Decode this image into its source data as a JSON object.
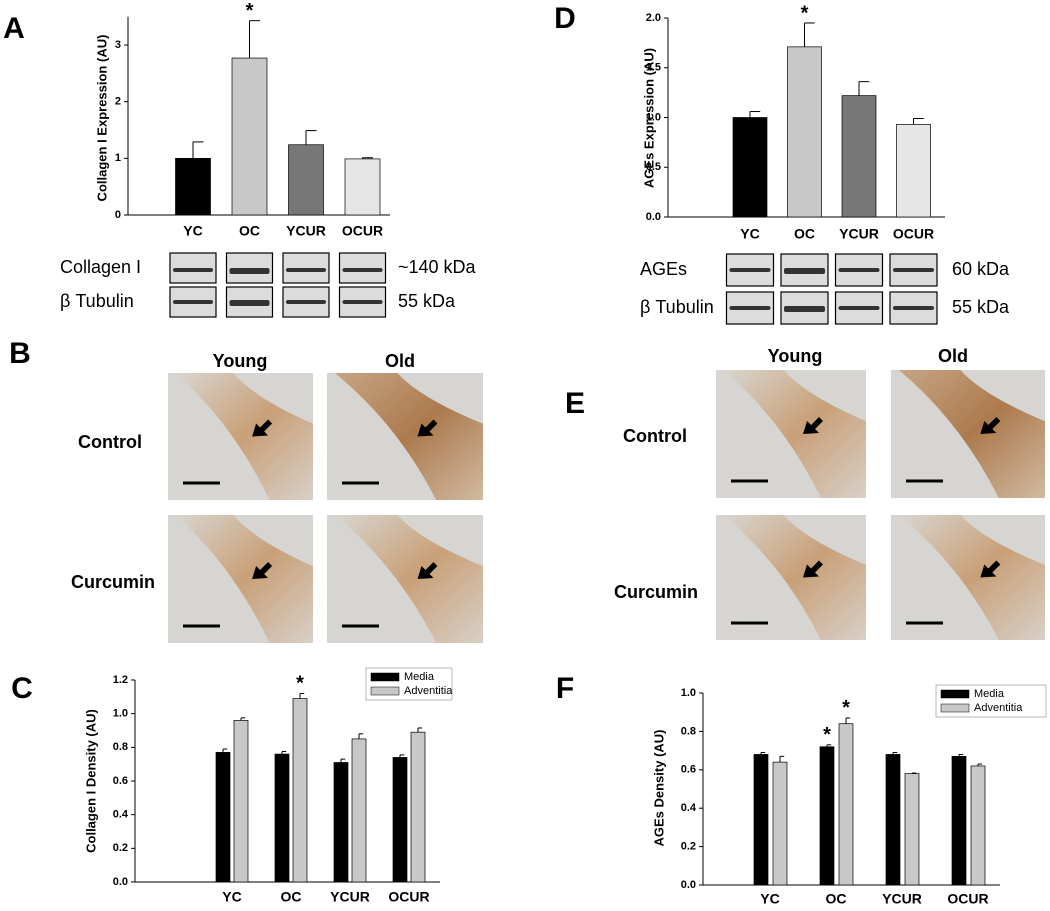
{
  "chart_data": [
    {
      "type": "bar",
      "panel": "A",
      "ylabel": "Collagen I Expression (AU)",
      "categories": [
        "YC",
        "OC",
        "YCUR",
        "OCUR"
      ],
      "values": [
        1.0,
        2.77,
        1.24,
        0.99
      ],
      "errors": [
        0.29,
        0.66,
        0.25,
        0.02
      ],
      "colors": [
        "#000000",
        "#c8c8c8",
        "#777777",
        "#e6e6e6"
      ],
      "stars": [
        null,
        "*",
        null,
        null
      ],
      "ylim": [
        0,
        3.5
      ],
      "yticks": [
        0,
        1,
        2,
        3
      ],
      "blots": [
        {
          "label": "Collagen I",
          "size": "~140 kDa"
        },
        {
          "label": "β Tubulin",
          "size": "55 kDa"
        }
      ]
    },
    {
      "type": "bar",
      "panel": "C",
      "ylabel": "Collagen I Density (AU)",
      "categories": [
        "YC",
        "OC",
        "YCUR",
        "OCUR"
      ],
      "series": [
        {
          "name": "Media",
          "color": "#000000",
          "values": [
            0.77,
            0.76,
            0.71,
            0.74
          ],
          "errors": [
            0.02,
            0.015,
            0.02,
            0.015
          ],
          "stars": [
            null,
            null,
            null,
            null
          ]
        },
        {
          "name": "Adventitia",
          "color": "#c8c8c8",
          "values": [
            0.96,
            1.09,
            0.85,
            0.89
          ],
          "errors": [
            0.015,
            0.03,
            0.03,
            0.025
          ],
          "stars": [
            null,
            "*",
            null,
            null
          ]
        }
      ],
      "ylim": [
        0,
        1.2
      ],
      "yticks": [
        {
          "value": 0,
          "label": "0.0"
        },
        0.2,
        0.4,
        0.6,
        0.8,
        {
          "value": 1,
          "label": "1.0"
        },
        1.2
      ]
    },
    {
      "type": "bar",
      "panel": "D",
      "ylabel": "AGEs Expression (AU)",
      "categories": [
        "YC",
        "OC",
        "YCUR",
        "OCUR"
      ],
      "values": [
        1.0,
        1.71,
        1.22,
        0.93
      ],
      "errors": [
        0.06,
        0.24,
        0.14,
        0.06
      ],
      "colors": [
        "#000000",
        "#c8c8c8",
        "#777777",
        "#e6e6e6"
      ],
      "stars": [
        null,
        "*",
        null,
        null
      ],
      "ylim": [
        0,
        2
      ],
      "yticks": [
        {
          "value": 0,
          "label": "0.0"
        },
        0.5,
        {
          "value": 1,
          "label": "1.0"
        },
        1.5,
        {
          "value": 2,
          "label": "2.0"
        }
      ],
      "blots": [
        {
          "label": "AGEs",
          "size": "60 kDa"
        },
        {
          "label": "β Tubulin",
          "size": "55 kDa"
        }
      ]
    },
    {
      "type": "bar",
      "panel": "F",
      "ylabel": "AGEs Density (AU)",
      "categories": [
        "YC",
        "OC",
        "YCUR",
        "OCUR"
      ],
      "series": [
        {
          "name": "Media",
          "color": "#000000",
          "values": [
            0.68,
            0.72,
            0.68,
            0.67
          ],
          "errors": [
            0.01,
            0.01,
            0.01,
            0.01
          ],
          "stars": [
            null,
            "*",
            null,
            null
          ]
        },
        {
          "name": "Adventitia",
          "color": "#c8c8c8",
          "values": [
            0.64,
            0.84,
            0.58,
            0.62
          ],
          "errors": [
            0.03,
            0.03,
            0.003,
            0.01
          ],
          "stars": [
            null,
            "*",
            null,
            null
          ]
        }
      ],
      "ylim": [
        0,
        1
      ],
      "yticks": [
        {
          "value": 0,
          "label": "0.0"
        },
        0.2,
        0.4,
        0.6,
        0.8,
        {
          "value": 1,
          "label": "1.0"
        }
      ]
    }
  ],
  "histology": [
    {
      "panel": "B",
      "columns": [
        "Young",
        "Old"
      ],
      "rows": [
        "Control",
        "Curcumin"
      ]
    },
    {
      "panel": "E",
      "columns": [
        "Young",
        "Old"
      ],
      "rows": [
        "Control",
        "Curcumin"
      ]
    }
  ]
}
